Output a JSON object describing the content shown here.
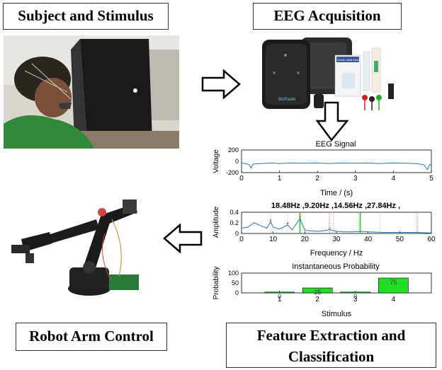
{
  "boxes": {
    "subject": "Subject and Stimulus",
    "eeg": "EEG Acquisition",
    "robot": "Robot Arm Control",
    "feature_line1": "Feature Extraction and",
    "feature_line2": "Classification"
  },
  "device": {
    "brand": "BioRadio",
    "label": "Great Lakes Neurotech"
  },
  "chart_data": [
    {
      "type": "line",
      "title": "EEG Signal",
      "xlabel": "Time / (s)",
      "ylabel": "Voltage",
      "xlim": [
        0,
        5
      ],
      "ylim": [
        -200,
        200
      ],
      "xticks": [
        "0",
        "1",
        "2",
        "3",
        "4",
        "5"
      ],
      "yticks": [
        "200",
        "0",
        "-200"
      ],
      "x": [
        0,
        0.1,
        0.2,
        0.25,
        0.3,
        0.5,
        0.8,
        1.0,
        1.3,
        1.6,
        2.0,
        2.3,
        2.6,
        3.0,
        3.3,
        3.6,
        4.0,
        4.3,
        4.6,
        4.8,
        4.9,
        4.95,
        5.0
      ],
      "values": [
        -30,
        -40,
        -60,
        -120,
        -50,
        -40,
        -30,
        -40,
        -30,
        -35,
        -30,
        -40,
        -30,
        -35,
        -30,
        -40,
        -30,
        -35,
        -40,
        -60,
        -150,
        -60,
        -50
      ],
      "color": "#1f77b4"
    },
    {
      "type": "line",
      "title": "18.48Hz ,9.20Hz ,14.56Hz ,27.84Hz ,",
      "xlabel": "Frequency / Hz",
      "ylabel": "Amplitude",
      "xlim": [
        0,
        60
      ],
      "ylim": [
        0,
        0.4
      ],
      "xticks": [
        "0",
        "10",
        "20",
        "30",
        "40",
        "50",
        "60"
      ],
      "yticks": [
        "0.4",
        "0.2",
        "0"
      ],
      "x": [
        0,
        2,
        4,
        6,
        8,
        9.2,
        10,
        12,
        14.56,
        16,
        18.48,
        20,
        22,
        24,
        26,
        27.84,
        30,
        32,
        35,
        38,
        40,
        45,
        50,
        55,
        60
      ],
      "values": [
        0.1,
        0.12,
        0.2,
        0.15,
        0.1,
        0.22,
        0.12,
        0.08,
        0.16,
        0.07,
        0.28,
        0.06,
        0.05,
        0.04,
        0.05,
        0.07,
        0.04,
        0.03,
        0.03,
        0.04,
        0.03,
        0.02,
        0.02,
        0.02,
        0.01
      ],
      "peaks": [
        9.2,
        14.56,
        18.48,
        27.84
      ],
      "highlights": [
        18.48,
        37.5
      ],
      "color": "#1f77b4"
    },
    {
      "type": "bar",
      "title": "Instantaneous Probability",
      "xlabel": "Stimulus",
      "ylabel": "Probability",
      "categories": [
        "1",
        "2",
        "3",
        "4"
      ],
      "values": [
        0,
        25,
        0,
        75
      ],
      "ylim": [
        0,
        100
      ],
      "yticks": [
        "100",
        "50",
        "0"
      ],
      "color": "#22dd22"
    }
  ]
}
